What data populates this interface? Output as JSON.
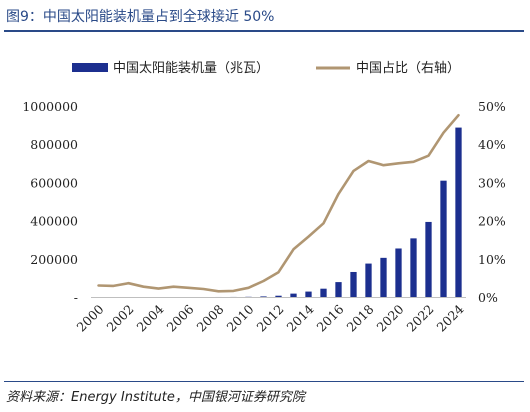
{
  "header": {
    "title": "图9：中国太阳能装机量占到全球接近 50%"
  },
  "footer": {
    "source": "资料来源：Energy Institute，中国银河证券研究院"
  },
  "chart_data": {
    "type": "bar+line",
    "title": "图9：中国太阳能装机量占到全球接近 50%",
    "categories": [
      "2000",
      "2001",
      "2002",
      "2003",
      "2004",
      "2005",
      "2006",
      "2007",
      "2008",
      "2009",
      "2010",
      "2011",
      "2012",
      "2013",
      "2014",
      "2015",
      "2016",
      "2017",
      "2018",
      "2019",
      "2020",
      "2021",
      "2022",
      "2023",
      "2024"
    ],
    "x_tick_labels": [
      "2000",
      "2002",
      "2004",
      "2006",
      "2008",
      "2010",
      "2012",
      "2014",
      "2016",
      "2018",
      "2020",
      "2022",
      "2024"
    ],
    "series": [
      {
        "name": "中国太阳能装机量（兆瓦）",
        "type": "bar",
        "axis": "left",
        "color": "#1c2f8f",
        "values": [
          0,
          0,
          0,
          0,
          0,
          0,
          0,
          0,
          100,
          300,
          1000,
          3100,
          6700,
          17700,
          28400,
          43500,
          78000,
          131000,
          175000,
          205000,
          254000,
          307000,
          393000,
          609000,
          887000
        ]
      },
      {
        "name": "中国占比（右轴）",
        "type": "line",
        "axis": "right",
        "color": "#b09672",
        "values": [
          3.0,
          2.9,
          3.6,
          2.7,
          2.2,
          2.7,
          2.4,
          2.1,
          1.5,
          1.6,
          2.4,
          4.2,
          6.5,
          12.5,
          15.8,
          19.3,
          27.0,
          33.0,
          35.6,
          34.5,
          35.0,
          35.4,
          37.0,
          43.0,
          47.6
        ]
      }
    ],
    "y_left": {
      "ylim": [
        0,
        1000000
      ],
      "tick_labels": [
        "-",
        "200000",
        "400000",
        "600000",
        "800000",
        "1000000"
      ],
      "tick_values": [
        0,
        200000,
        400000,
        600000,
        800000,
        1000000
      ]
    },
    "y_right": {
      "ylim": [
        0,
        50
      ],
      "tick_labels": [
        "0%",
        "10%",
        "20%",
        "30%",
        "40%",
        "50%"
      ],
      "tick_values": [
        0,
        10,
        20,
        30,
        40,
        50
      ]
    },
    "grid": false,
    "legend": "top"
  }
}
